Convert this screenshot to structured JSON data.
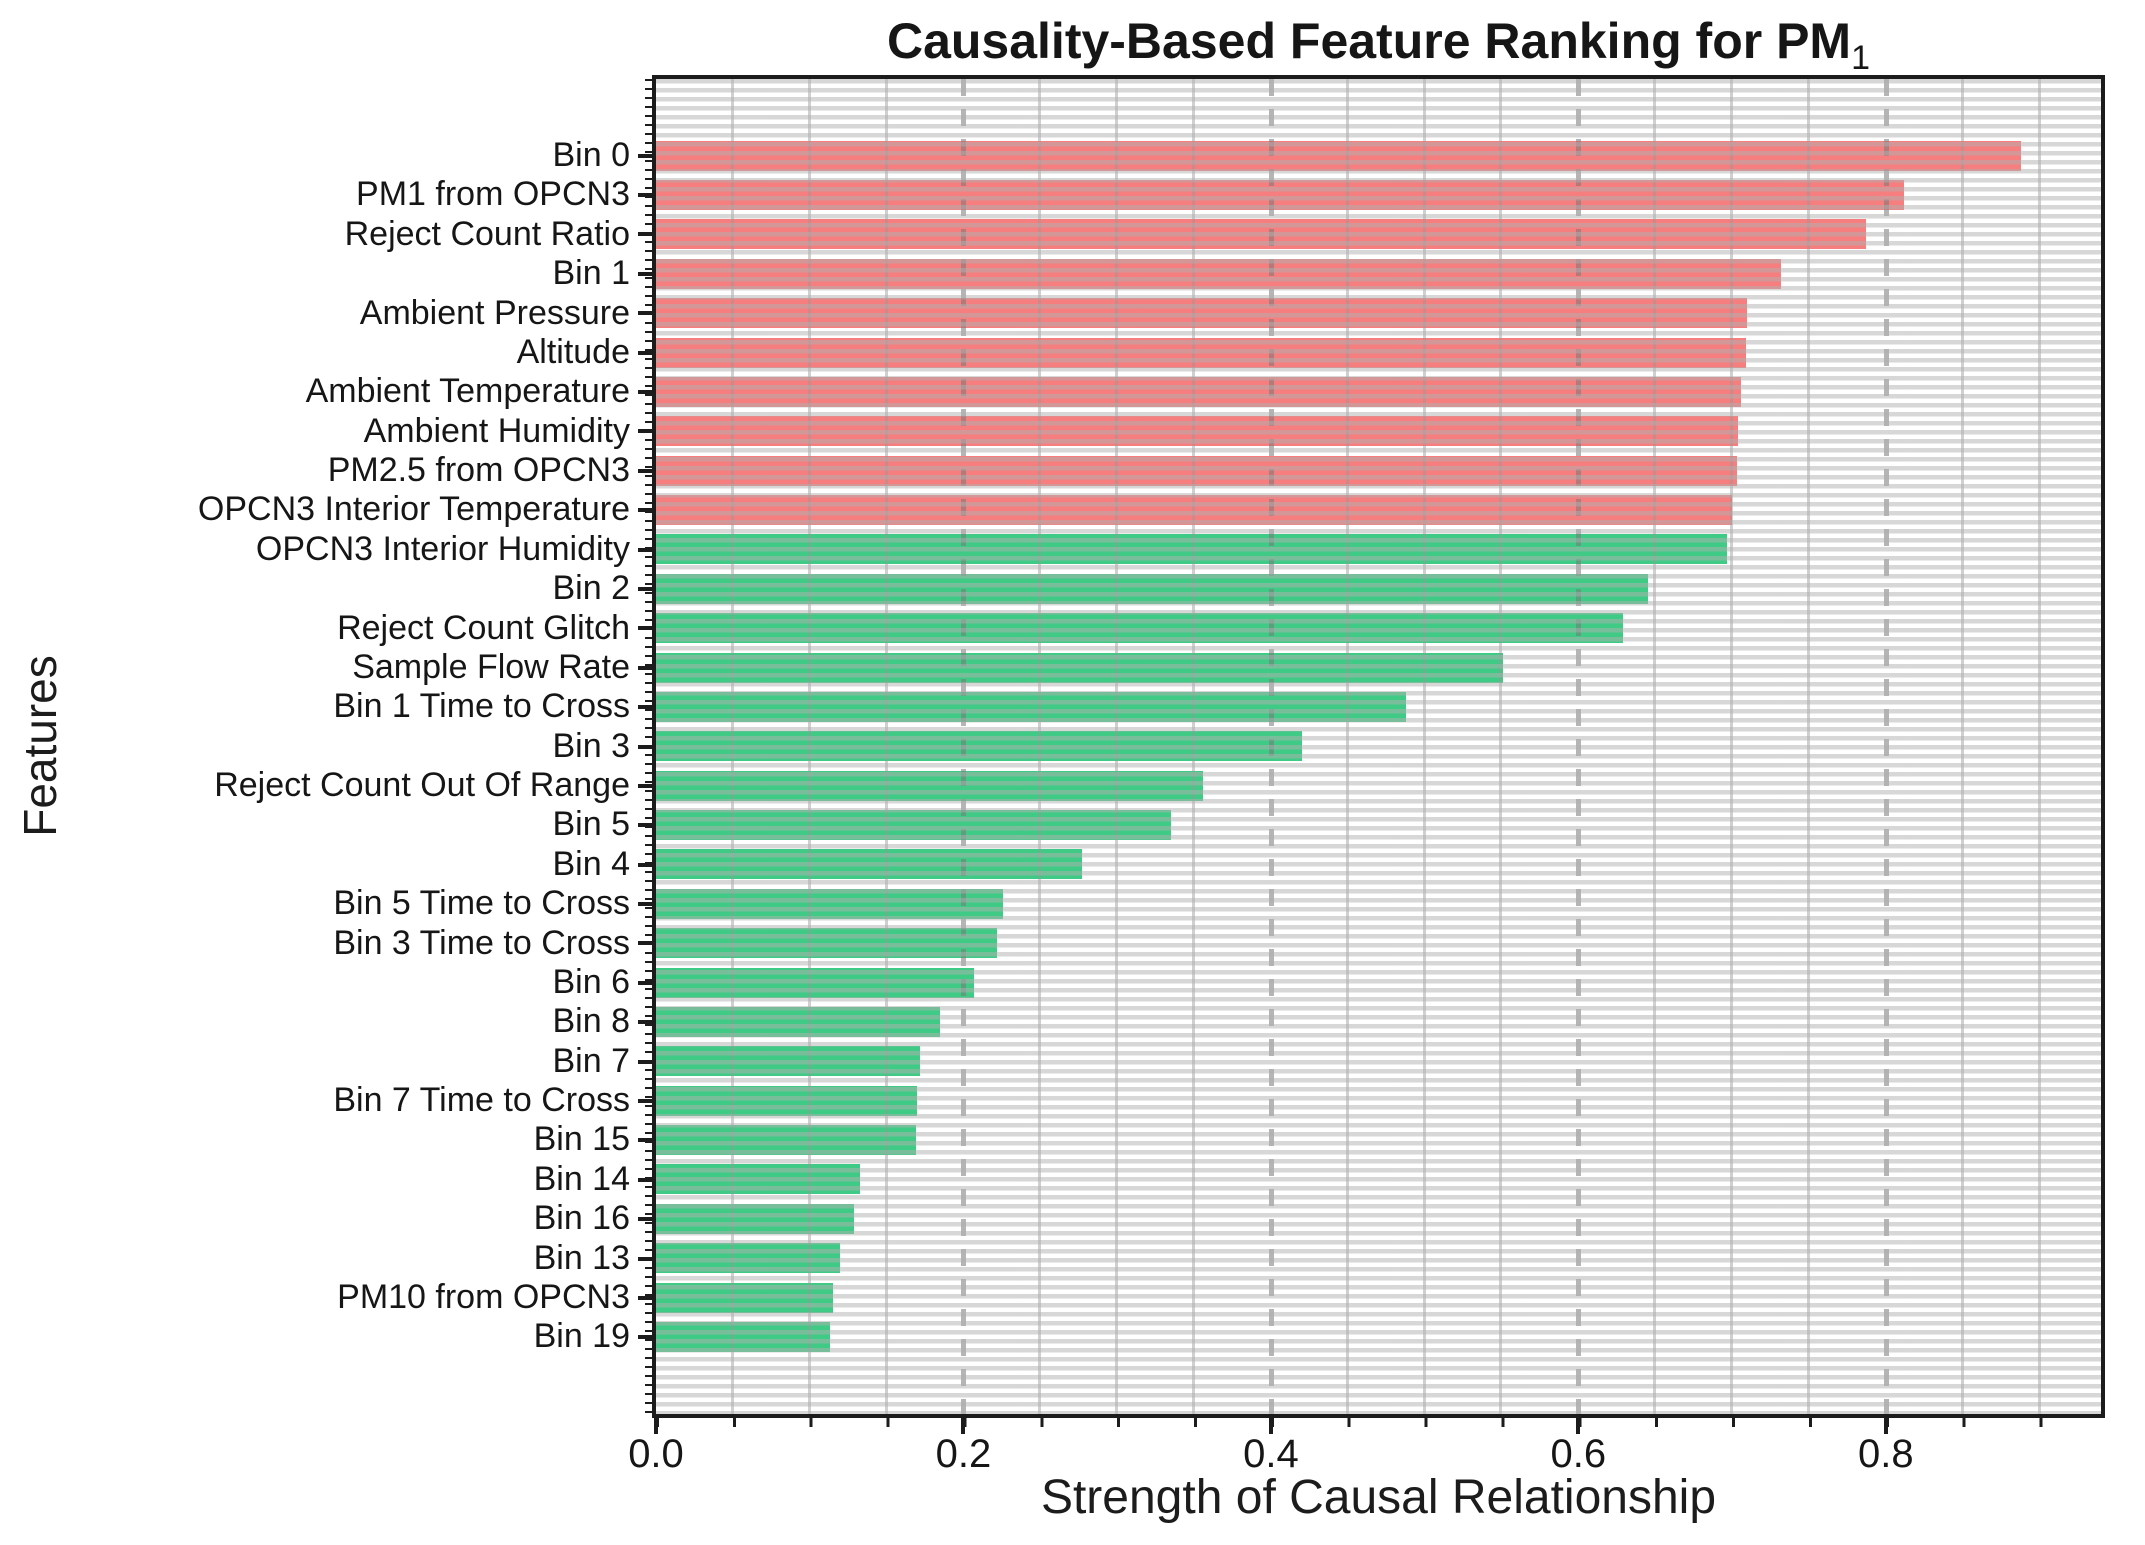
{
  "title": {
    "text": "Causality-Based Feature Ranking for PM",
    "subscript": "1"
  },
  "axes": {
    "x_label": "Strength of Causal Relationship",
    "y_label": "Features",
    "x_tick_labels": [
      "0.0",
      "0.2",
      "0.4",
      "0.6",
      "0.8"
    ],
    "x_tick_values": [
      0.0,
      0.2,
      0.4,
      0.6,
      0.8
    ],
    "x_minor_tick_step": 0.05,
    "x_max": 0.94
  },
  "colors": {
    "bar_red": "#f67e7e",
    "bar_green": "#3fcb85",
    "grid_stripe": "#d9d9d9",
    "spine": "#1c1c1c",
    "background": "#ffffff"
  },
  "chart_data": {
    "type": "bar",
    "orientation": "horizontal",
    "title": "Causality-Based Feature Ranking for PM₁",
    "xlabel": "Strength of Causal Relationship",
    "ylabel": "Features",
    "xlim": [
      0,
      0.94
    ],
    "grid": true,
    "legend": false,
    "categories": [
      "Bin 0",
      "PM1 from OPCN3",
      "Reject Count Ratio",
      "Bin 1",
      "Ambient Pressure",
      "Altitude",
      "Ambient Temperature",
      "Ambient Humidity",
      "PM2.5 from OPCN3",
      "OPCN3 Interior Temperature",
      "OPCN3 Interior Humidity",
      "Bin 2",
      "Reject Count Glitch",
      "Sample Flow Rate",
      "Bin 1 Time to Cross",
      "Bin 3",
      "Reject Count Out Of Range",
      "Bin 5",
      "Bin 4",
      "Bin 5 Time to Cross",
      "Bin 3 Time to Cross",
      "Bin 6",
      "Bin 8",
      "Bin 7",
      "Bin 7 Time to Cross",
      "Bin 15",
      "Bin 14",
      "Bin 16",
      "Bin 13",
      "PM10 from OPCN3",
      "Bin 19"
    ],
    "values": [
      0.888,
      0.812,
      0.787,
      0.732,
      0.71,
      0.709,
      0.706,
      0.704,
      0.703,
      0.7,
      0.697,
      0.645,
      0.629,
      0.551,
      0.488,
      0.42,
      0.356,
      0.335,
      0.277,
      0.226,
      0.222,
      0.207,
      0.185,
      0.172,
      0.17,
      0.169,
      0.133,
      0.129,
      0.12,
      0.115,
      0.113
    ],
    "bar_colors": [
      "red",
      "red",
      "red",
      "red",
      "red",
      "red",
      "red",
      "red",
      "red",
      "red",
      "green",
      "green",
      "green",
      "green",
      "green",
      "green",
      "green",
      "green",
      "green",
      "green",
      "green",
      "green",
      "green",
      "green",
      "green",
      "green",
      "green",
      "green",
      "green",
      "green",
      "green"
    ]
  }
}
